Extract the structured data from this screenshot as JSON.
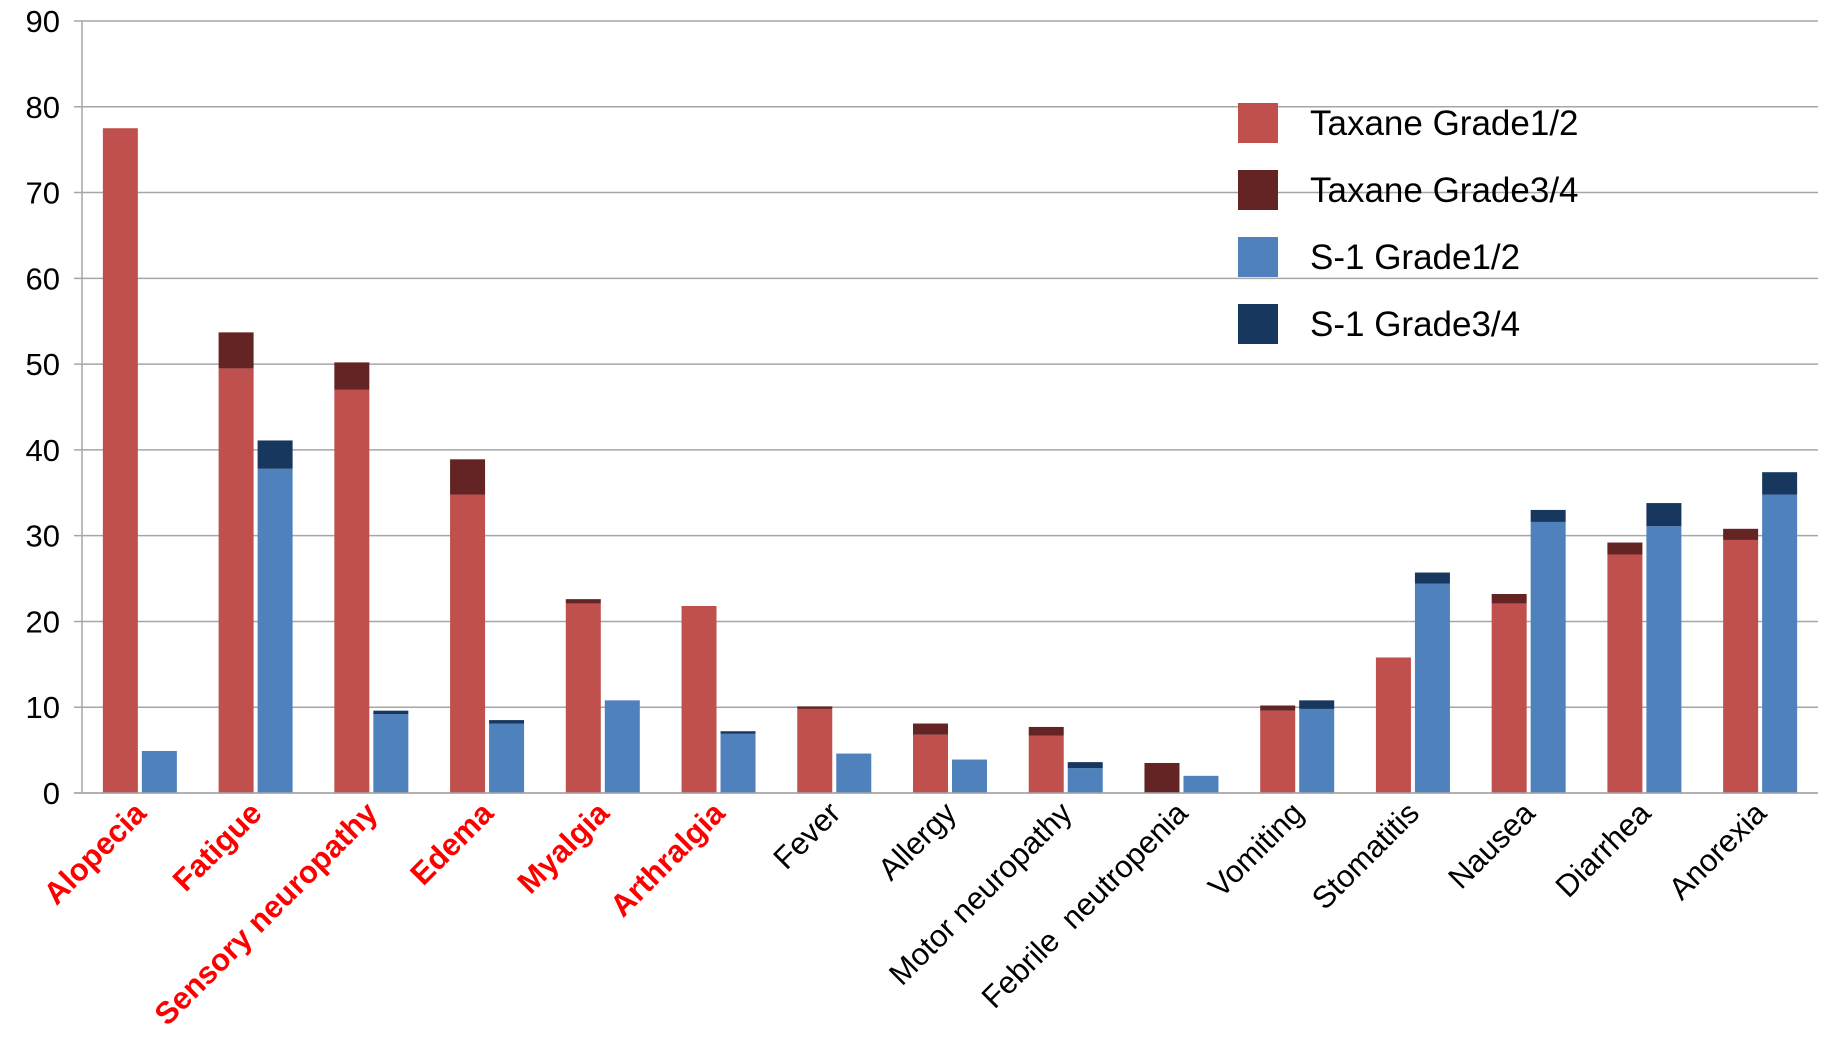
{
  "chart_data": {
    "type": "bar",
    "stacked": true,
    "grouped": true,
    "ylim": [
      0,
      90
    ],
    "ytick_step": 10,
    "grid": true,
    "legend_position": "top-right",
    "categories": [
      {
        "label": "Alopecia",
        "highlight": true
      },
      {
        "label": "Fatigue",
        "highlight": true
      },
      {
        "label": "Sensory neuropathy",
        "highlight": true
      },
      {
        "label": "Edema",
        "highlight": true
      },
      {
        "label": "Myalgia",
        "highlight": true
      },
      {
        "label": "Arthralgia",
        "highlight": true
      },
      {
        "label": "Fever",
        "highlight": false
      },
      {
        "label": "Allergy",
        "highlight": false
      },
      {
        "label": "Motor neuropathy",
        "highlight": false
      },
      {
        "label": "Febrile  neutropenia",
        "highlight": false
      },
      {
        "label": "Vomiting",
        "highlight": false
      },
      {
        "label": "Stomatitis",
        "highlight": false
      },
      {
        "label": "Nausea",
        "highlight": false
      },
      {
        "label": "Diarrhea",
        "highlight": false
      },
      {
        "label": "Anorexia",
        "highlight": false
      }
    ],
    "series": [
      {
        "name": "Taxane Grade1/2",
        "group": "Taxane",
        "color": "#c0504d",
        "values": [
          77.5,
          49.5,
          47.0,
          34.8,
          22.1,
          21.8,
          9.8,
          6.8,
          6.7,
          0,
          9.6,
          15.8,
          22.1,
          27.8,
          29.5
        ]
      },
      {
        "name": "Taxane Grade3/4",
        "group": "Taxane",
        "color": "#632423",
        "values": [
          0,
          4.2,
          3.2,
          4.1,
          0.5,
          0,
          0.3,
          1.3,
          1.0,
          3.5,
          0.6,
          0,
          1.1,
          1.4,
          1.3
        ]
      },
      {
        "name": "S-1 Grade1/2",
        "group": "S-1",
        "color": "#4f81bd",
        "values": [
          4.9,
          37.8,
          9.2,
          8.1,
          10.8,
          6.9,
          4.6,
          3.9,
          2.9,
          2.0,
          9.8,
          24.4,
          31.6,
          31.1,
          34.8
        ]
      },
      {
        "name": "S-1 Grade3/4",
        "group": "S-1",
        "color": "#17375e",
        "values": [
          0,
          3.3,
          0.4,
          0.4,
          0,
          0.3,
          0,
          0,
          0.7,
          0,
          1.0,
          1.3,
          1.4,
          2.7,
          2.6
        ]
      }
    ],
    "highlight_color": "#ff0000",
    "label_color": "#000000",
    "grid_color": "#a6a6a6"
  }
}
